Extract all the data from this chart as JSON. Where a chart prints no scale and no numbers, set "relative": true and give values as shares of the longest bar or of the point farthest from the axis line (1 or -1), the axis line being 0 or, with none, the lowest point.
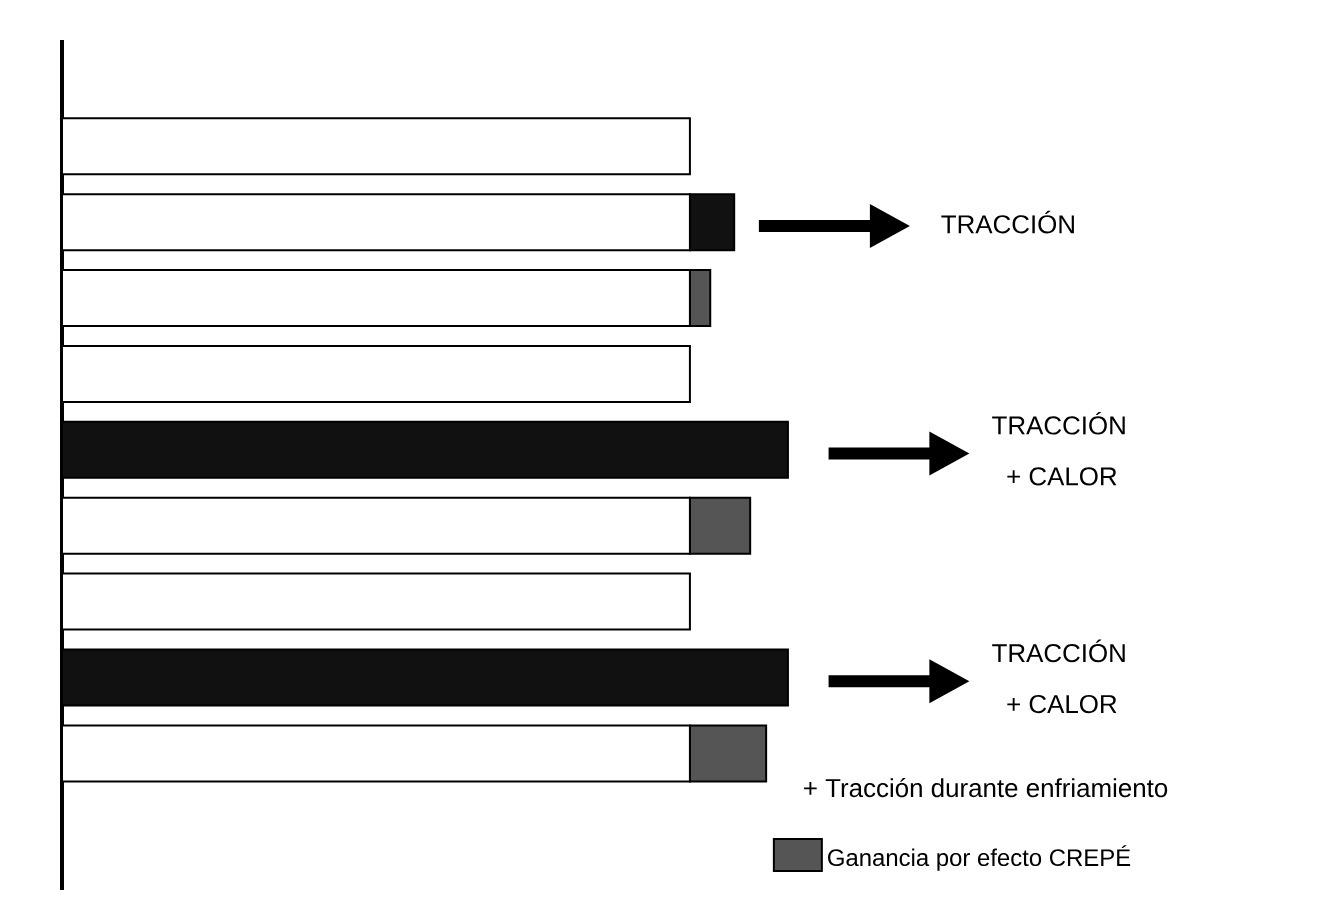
{
  "chart_data": {
    "type": "bar",
    "orientation": "horizontal",
    "stacked": true,
    "relative": true,
    "categories": [
      null,
      null,
      null,
      null,
      null,
      null,
      null,
      null,
      null
    ],
    "series": [
      {
        "color": "#ffffff",
        "values": [
          0.865,
          null,
          0.865,
          0.865,
          null,
          0.865,
          0.865,
          null,
          0.865
        ]
      },
      {
        "color": "#ffffff",
        "values": [
          null,
          0.865,
          null,
          null,
          null,
          null,
          null,
          null,
          null
        ]
      },
      {
        "color": "#111111",
        "values": [
          null,
          0.061,
          null,
          null,
          1,
          null,
          null,
          1,
          null
        ]
      },
      {
        "name": "Ganancia por efecto CREPÉ",
        "color": "#555555",
        "values": [
          null,
          null,
          0.028,
          null,
          null,
          0.083,
          null,
          null,
          0.105
        ]
      }
    ],
    "annotations": [
      "TRACCIÓN",
      "TRACCIÓN",
      "+ CALOR",
      "TRACCIÓN",
      "+ CALOR",
      "+ Tracción durante enfriamiento"
    ],
    "legend": "bottom right"
  }
}
